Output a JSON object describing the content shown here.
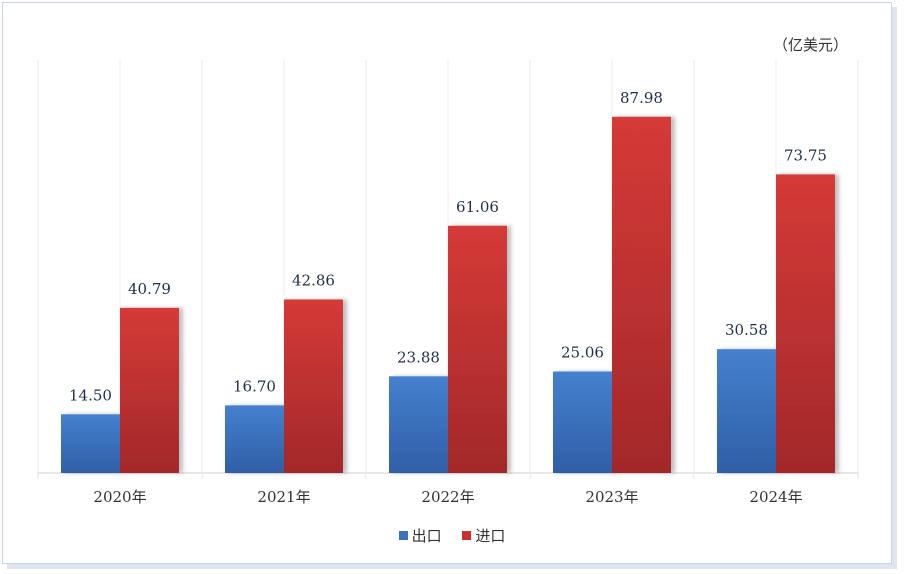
{
  "chart_data": {
    "type": "bar",
    "unit_label": "（亿美元）",
    "categories": [
      "2020年",
      "2021年",
      "2022年",
      "2023年",
      "2024年"
    ],
    "series": [
      {
        "name": "出口",
        "values": [
          14.5,
          16.7,
          23.88,
          25.06,
          30.58
        ],
        "color": "#3a70bf"
      },
      {
        "name": "进口",
        "values": [
          40.79,
          42.86,
          61.06,
          87.98,
          73.75
        ],
        "color": "#c9302f"
      }
    ],
    "ylim": [
      0,
      102
    ],
    "grid": "vertical",
    "legend": "bottom-center"
  }
}
